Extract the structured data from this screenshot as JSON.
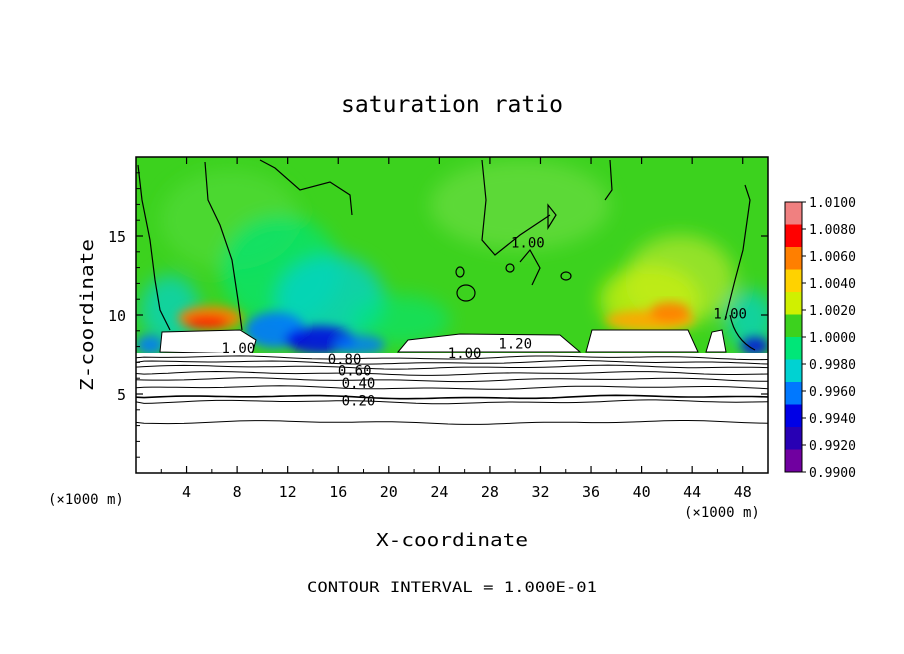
{
  "chart_data": {
    "type": "heatmap",
    "title": "saturation ratio",
    "xlabel": "X-coordinate",
    "ylabel": "Z-coordinate",
    "x_unit_note": "(×1000 m)",
    "x_unit_note_right": "(×1000 m)",
    "footer": "CONTOUR INTERVAL = 1.000E-01",
    "xlim": [
      0,
      50
    ],
    "ylim": [
      0,
      20
    ],
    "x_ticks": [
      4,
      8,
      12,
      16,
      20,
      24,
      28,
      32,
      36,
      40,
      44,
      48
    ],
    "x_tick_labels": [
      "4",
      "8",
      "12",
      "16",
      "20",
      "24",
      "28",
      "32",
      "36",
      "40",
      "44",
      "48"
    ],
    "y_ticks": [
      5,
      10,
      15
    ],
    "y_tick_labels": [
      "5",
      "10",
      "15"
    ],
    "colorbar": {
      "min": 0.99,
      "max": 1.01,
      "labels": [
        "1.0100",
        "1.0080",
        "1.0060",
        "1.0040",
        "1.0020",
        "1.0000",
        "0.9980",
        "0.9960",
        "0.9940",
        "0.9920",
        "0.9900"
      ],
      "colors": [
        "#f08080",
        "#ff0000",
        "#ff7f00",
        "#ffd200",
        "#d0f000",
        "#3cd21e",
        "#00e678",
        "#00d2d2",
        "#0078ff",
        "#0000e6",
        "#2800b4",
        "#7000a0"
      ]
    },
    "contour_labels": [
      {
        "text": "1.00",
        "x": 8.1,
        "z": 7.9
      },
      {
        "text": "0.80",
        "x": 16.5,
        "z": 7.2
      },
      {
        "text": "0.60",
        "x": 17.3,
        "z": 6.5
      },
      {
        "text": "0.40",
        "x": 17.6,
        "z": 5.7
      },
      {
        "text": "0.20",
        "x": 17.6,
        "z": 4.6
      },
      {
        "text": "1.00",
        "x": 26.0,
        "z": 7.6
      },
      {
        "text": "1.20",
        "x": 30.0,
        "z": 8.2
      },
      {
        "text": "1.00",
        "x": 31.0,
        "z": 14.6
      },
      {
        "text": "1.00",
        "x": 47.0,
        "z": 10.1
      }
    ],
    "background_contours_z": [
      3.2,
      4.5,
      4.8,
      5.4,
      5.9,
      6.3,
      6.7,
      7.0,
      7.3
    ]
  }
}
